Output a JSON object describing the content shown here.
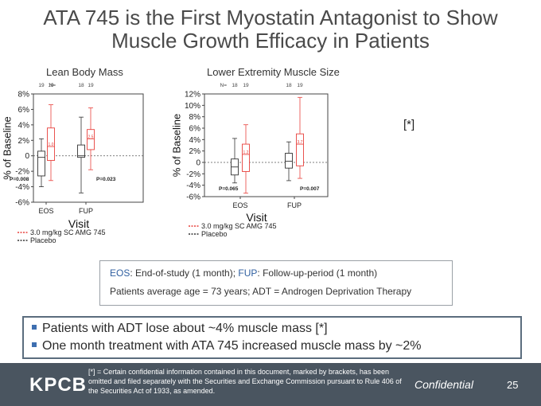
{
  "title_line1": "ATA 745 is the First Myostatin Antagonist to Show",
  "title_line2": "Muscle Growth Efficacy in Patients",
  "chart_data": [
    {
      "type": "box",
      "title": "Lean Body Mass",
      "xlabel": "Visit",
      "ylabel": "% of Baseline",
      "ylim": [
        -6,
        8
      ],
      "yticks": [
        "8%",
        "6%",
        "4%",
        "2%",
        "0",
        "-2%",
        "-4%",
        "-6%"
      ],
      "ytick_values": [
        8,
        6,
        4,
        2,
        0,
        -2,
        -4,
        -6
      ],
      "categories": [
        "EOS",
        "FUP"
      ],
      "n_label": "N=",
      "n_values": [
        "19",
        "19",
        "18",
        "19"
      ],
      "series": [
        {
          "name": "Placebo",
          "color": "#333333",
          "boxes": [
            {
              "category": "EOS",
              "min": -4.0,
              "q1": -2.6,
              "median": -0.2,
              "q3": 0.6,
              "max": 2.2
            },
            {
              "category": "FUP",
              "min": -4.8,
              "q1": -0.2,
              "median": 0.0,
              "q3": 1.4,
              "max": 5.0
            }
          ]
        },
        {
          "name": "3.0 mg/kg SC AMG 745",
          "color": "#e8413c",
          "boxes": [
            {
              "category": "EOS",
              "min": -3.2,
              "q1": -0.6,
              "median": 1.2,
              "q3": 3.6,
              "max": 6.6,
              "mean_label": "1.0"
            },
            {
              "category": "FUP",
              "min": -1.8,
              "q1": 0.8,
              "median": 2.2,
              "q3": 3.4,
              "max": 6.2,
              "mean_label": "2.5"
            }
          ]
        }
      ],
      "pvalues": [
        "P=0.008",
        "P=0.023"
      ]
    },
    {
      "type": "box",
      "title": "Lower Extremity Muscle Size",
      "xlabel": "Visit",
      "ylabel": "% of Baseline",
      "ylim": [
        -6,
        12
      ],
      "yticks": [
        "12%",
        "10%",
        "8%",
        "6%",
        "4%",
        "2%",
        "0",
        "-2%",
        "-4%",
        "-6%"
      ],
      "ytick_values": [
        12,
        10,
        8,
        6,
        4,
        2,
        0,
        -2,
        -4,
        -6
      ],
      "categories": [
        "EOS",
        "FUP"
      ],
      "n_label": "N=",
      "n_values": [
        "18",
        "19",
        "18",
        "19"
      ],
      "series": [
        {
          "name": "Placebo",
          "color": "#333333",
          "boxes": [
            {
              "category": "EOS",
              "min": -3.6,
              "q1": -2.2,
              "median": -0.8,
              "q3": 0.6,
              "max": 4.2
            },
            {
              "category": "FUP",
              "min": -3.2,
              "q1": -1.0,
              "median": 0.2,
              "q3": 1.6,
              "max": 3.6
            }
          ]
        },
        {
          "name": "3.0 mg/kg SC AMG 745",
          "color": "#e8413c",
          "boxes": [
            {
              "category": "EOS",
              "min": -5.4,
              "q1": -1.6,
              "median": 1.4,
              "q3": 3.2,
              "max": 6.6,
              "mean_label": "1.2"
            },
            {
              "category": "FUP",
              "min": -2.8,
              "q1": -0.6,
              "median": 3.2,
              "q3": 5.0,
              "max": 11.4,
              "mean_label": "3.7"
            }
          ]
        }
      ],
      "pvalues": [
        "P=0.065",
        "P=0.007"
      ]
    }
  ],
  "bracket_note": "[*]",
  "definitions": {
    "line1_eos_key": "EOS",
    "line1_eos_desc": ": End-of-study (1 month); ",
    "line1_fup_key": "FUP",
    "line1_fup_desc": ": Follow-up-period (1 month)",
    "line2": "Patients average age = 73 years; ADT = Androgen Deprivation Therapy"
  },
  "bullets": [
    "Patients with ADT lose about ~4% muscle mass [*]",
    "One month treatment with ATA 745 increased muscle mass by ~2%"
  ],
  "footer": {
    "logo": "KPCB",
    "footnote": "[*] = Certain confidential information contained in this document, marked by brackets, has been omitted and filed separately with the Securities and Exchange Commission pursuant to Rule 406 of the Securities Act of 1933, as amended.",
    "confidential": "Confidential",
    "page": "25"
  },
  "colors": {
    "treatment": "#e8413c",
    "placebo": "#333333",
    "footer_bg": "#4a5560",
    "bullet": "#3e6fb0"
  }
}
